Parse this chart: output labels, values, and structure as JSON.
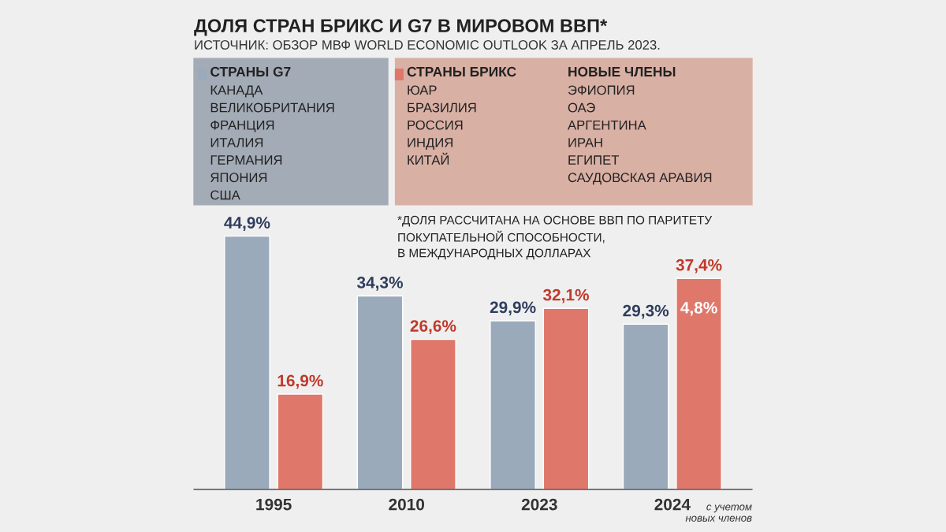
{
  "chart_data": {
    "type": "bar",
    "title": "ДОЛЯ СТРАН БРИКС И G7 В МИРОВОМ ВВП*",
    "subtitle": "ИСТОЧНИК: ОБЗОР МВФ WORLD ECONOMIC OUTLOOK ЗА АПРЕЛЬ 2023.",
    "categories": [
      "1995",
      "2010",
      "2023",
      "2024"
    ],
    "series": [
      {
        "name": "СТРАНЫ G7",
        "color": "#9aaabb",
        "values": [
          44.9,
          34.3,
          29.9,
          29.3
        ],
        "value_labels": [
          "44,9%",
          "34,3%",
          "29,9%",
          "29,3%"
        ]
      },
      {
        "name": "СТРАНЫ БРИКС",
        "color": "#e0776b",
        "values": [
          16.9,
          26.6,
          32.1,
          37.4
        ],
        "value_labels": [
          "16,9%",
          "26,6%",
          "32,1%",
          "37,4%"
        ]
      }
    ],
    "tick_labels": "x",
    "legend": "top",
    "grid": false,
    "annotations": [
      "КАНАДА\nВЕЛИКОБРИТАНИЯ\nФРАНЦИЯ\nИТАЛИЯ\nГЕРМАНИЯ\nЯПОНИЯ\nСША",
      "ЮАР\nБРАЗИЛИЯ\nРОССИЯ\nИНДИЯ\nКИТАЙ",
      "НОВЫЕ ЧЛЕНЫ\nЭФИОПИЯ\nОАЭ\nАРГЕНТИНА\nИРАН\nЕГИПЕТ\nСАУДОВСКАЯ АРАВИЯ",
      "*ДОЛЯ РАССЧИТАНА НА ОСНОВЕ ВВП ПО ПАРИТЕТУ\nПОКУПАТЕЛЬНОЙ СПОСОБНОСТИ,\nВ МЕЖДУНАРОДНЫХ ДОЛЛАРАХ",
      "4,8%",
      "с учетом\nновых членов"
    ]
  }
}
